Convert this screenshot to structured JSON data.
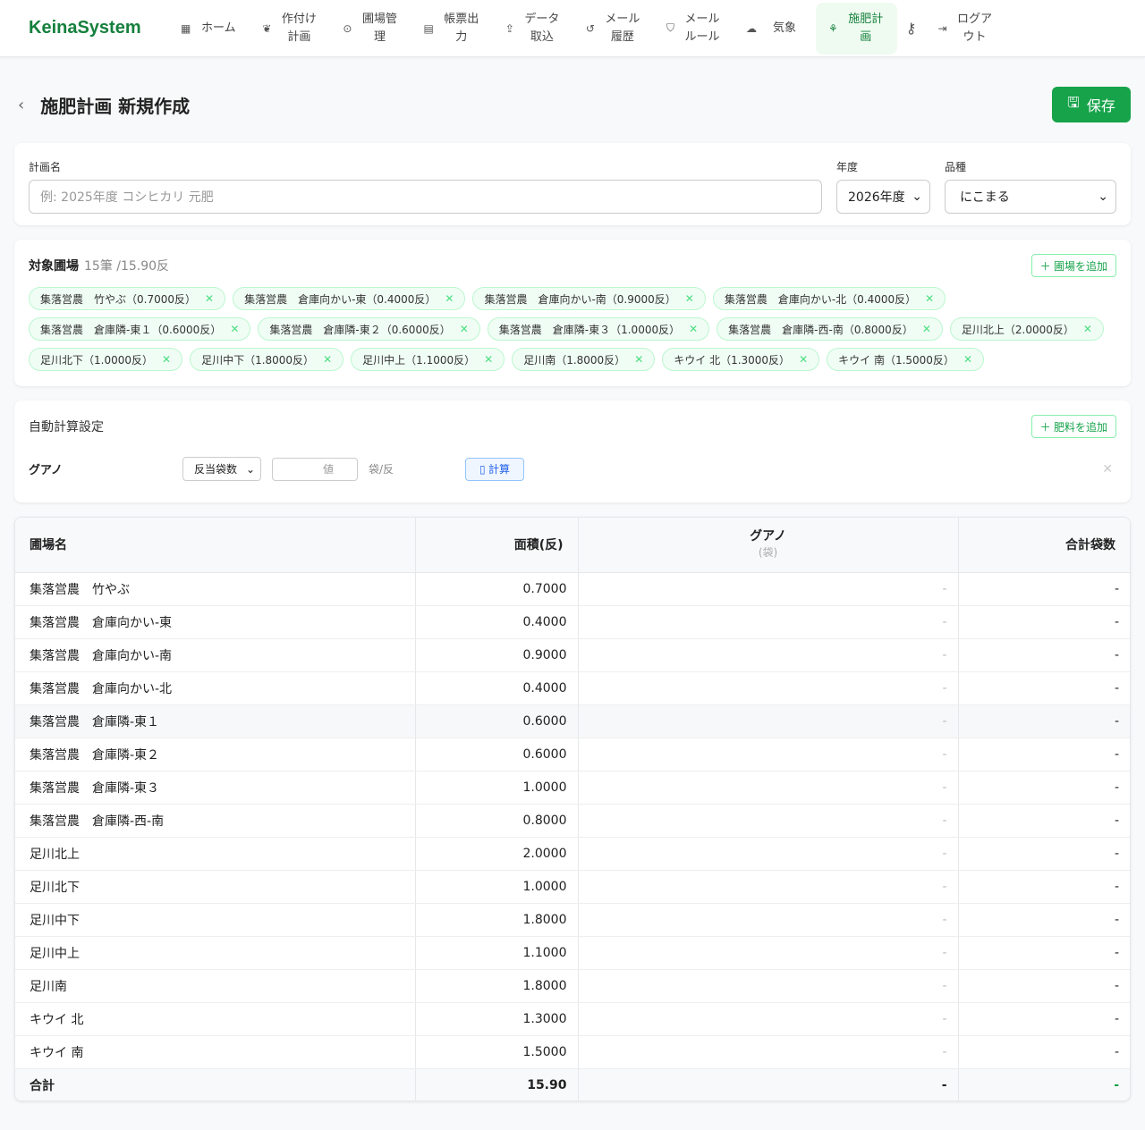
{
  "nav": {
    "logo": "KeinaSystem",
    "items": [
      {
        "label": "ホーム",
        "icon": "grid-icon",
        "glyph": "▦"
      },
      {
        "label": "作付け計画",
        "icon": "wheat-icon",
        "glyph": "❦"
      },
      {
        "label": "圃場管理",
        "icon": "map-pin-icon",
        "glyph": "⊙"
      },
      {
        "label": "帳票出力",
        "icon": "file-icon",
        "glyph": "▤"
      },
      {
        "label": "データ取込",
        "icon": "upload-icon",
        "glyph": "⇪"
      },
      {
        "label": "メール履歴",
        "icon": "history-icon",
        "glyph": "↺"
      },
      {
        "label": "メールルール",
        "icon": "shield-icon",
        "glyph": "⛉"
      },
      {
        "label": "気象",
        "icon": "cloud-icon",
        "glyph": "☁"
      },
      {
        "label": "施肥計画",
        "icon": "sprout-icon",
        "glyph": "⚘",
        "active": true
      }
    ],
    "key_icon": "key-icon",
    "logout": "ログアウト"
  },
  "page": {
    "title": "施肥計画 新規作成",
    "save": "保存"
  },
  "form": {
    "name_label": "計画名",
    "name_placeholder": "例: 2025年度 コシヒカリ 元肥",
    "year_label": "年度",
    "year_value": "2026年度",
    "variety_label": "品種",
    "variety_value": "にこまる"
  },
  "fields": {
    "title": "対象圃場",
    "summary": "15筆 /15.90反",
    "add": "＋ 圃場を追加",
    "tags": [
      "集落営農　竹やぶ（0.7000反）",
      "集落営農　倉庫向かい-東（0.4000反）",
      "集落営農　倉庫向かい-南（0.9000反）",
      "集落営農　倉庫向かい-北（0.4000反）",
      "集落営農　倉庫隣-東１（0.6000反）",
      "集落営農　倉庫隣-東２（0.6000反）",
      "集落営農　倉庫隣-東３（1.0000反）",
      "集落営農　倉庫隣-西-南（0.8000反）",
      "足川北上（2.0000反）",
      "足川北下（1.0000反）",
      "足川中下（1.8000反）",
      "足川中上（1.1000反）",
      "足川南（1.8000反）",
      "キウイ 北（1.3000反）",
      "キウイ 南（1.5000反）"
    ]
  },
  "auto": {
    "title": "自動計算設定",
    "add": "＋ 肥料を追加",
    "fertilizer": "グアノ",
    "mode": "反当袋数",
    "value_placeholder": "値",
    "unit": "袋/反",
    "calc": "計算"
  },
  "table": {
    "headers": {
      "name": "圃場名",
      "area": "面積(反)",
      "fert": "グアノ",
      "fert_unit": "(袋)",
      "total": "合計袋数"
    },
    "rows": [
      [
        "集落営農　竹やぶ",
        "0.7000",
        "-",
        "-"
      ],
      [
        "集落営農　倉庫向かい-東",
        "0.4000",
        "-",
        "-"
      ],
      [
        "集落営農　倉庫向かい-南",
        "0.9000",
        "-",
        "-"
      ],
      [
        "集落営農　倉庫向かい-北",
        "0.4000",
        "-",
        "-"
      ],
      [
        "集落営農　倉庫隣-東１",
        "0.6000",
        "-",
        "-"
      ],
      [
        "集落営農　倉庫隣-東２",
        "0.6000",
        "-",
        "-"
      ],
      [
        "集落営農　倉庫隣-東３",
        "1.0000",
        "-",
        "-"
      ],
      [
        "集落営農　倉庫隣-西-南",
        "0.8000",
        "-",
        "-"
      ],
      [
        "足川北上",
        "2.0000",
        "-",
        "-"
      ],
      [
        "足川北下",
        "1.0000",
        "-",
        "-"
      ],
      [
        "足川中下",
        "1.8000",
        "-",
        "-"
      ],
      [
        "足川中上",
        "1.1000",
        "-",
        "-"
      ],
      [
        "足川南",
        "1.8000",
        "-",
        "-"
      ],
      [
        "キウイ 北",
        "1.3000",
        "-",
        "-"
      ],
      [
        "キウイ 南",
        "1.5000",
        "-",
        "-"
      ]
    ],
    "total": {
      "label": "合計",
      "area": "15.90",
      "fert": "-",
      "total": "-"
    }
  }
}
